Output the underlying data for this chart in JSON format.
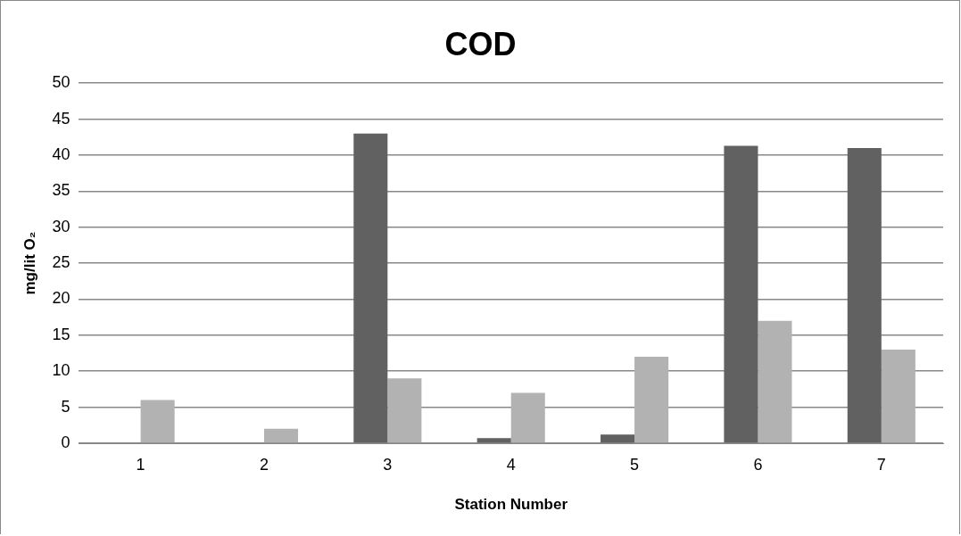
{
  "chart_data": {
    "type": "bar",
    "title": "COD",
    "xlabel": "Station Number",
    "ylabel": "mg/lit O₂",
    "categories": [
      "1",
      "2",
      "3",
      "4",
      "5",
      "6",
      "7"
    ],
    "series": [
      {
        "color": "#616161",
        "values": [
          0.1,
          0,
          43,
          0.7,
          1.2,
          41.3,
          41
        ]
      },
      {
        "color": "#b2b2b2",
        "values": [
          6,
          2,
          9,
          7,
          12,
          17,
          13
        ]
      }
    ],
    "ylim": [
      0,
      50
    ],
    "yticks": [
      0,
      5,
      10,
      15,
      20,
      25,
      30,
      35,
      40,
      45,
      50
    ],
    "grid": "y",
    "legend": false
  }
}
